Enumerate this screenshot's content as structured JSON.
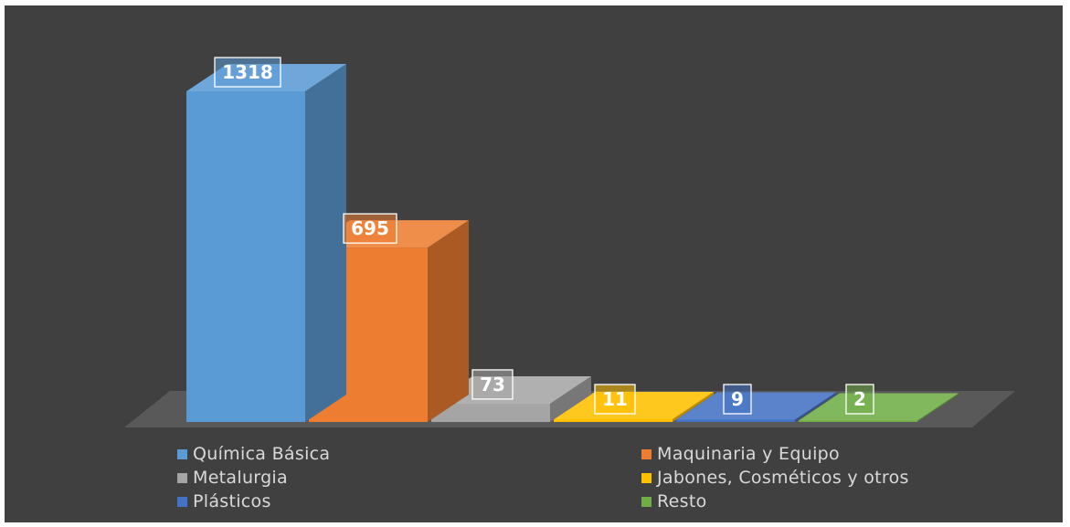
{
  "chart_data": {
    "type": "bar",
    "style": "3d-column",
    "title": "",
    "xlabel": "",
    "ylabel": "",
    "grid": false,
    "legend_position": "bottom",
    "categories": [
      "Química Básica",
      "Maquinaria y Equipo",
      "Metalurgia",
      "Jabones, Cosméticos y otros",
      "Plásticos",
      "Resto"
    ],
    "values": [
      1318,
      695,
      73,
      11,
      9,
      2
    ],
    "data_labels": [
      "1318",
      "695",
      "73",
      "11",
      "9",
      "2"
    ],
    "colors": [
      "#5b9bd5",
      "#ed7d31",
      "#a5a5a5",
      "#ffc000",
      "#4472c4",
      "#70ad47"
    ]
  },
  "colors": {
    "background": "#404040",
    "floor": "#595959",
    "text": "#d9d9d9"
  }
}
